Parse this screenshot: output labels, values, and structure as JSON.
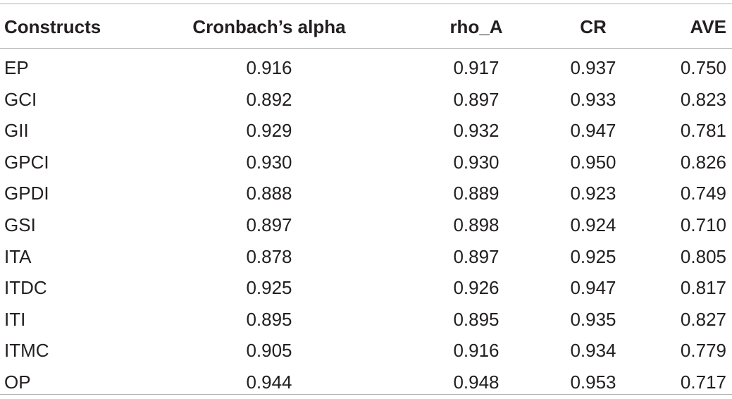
{
  "table": {
    "headers": [
      "Constructs",
      "Cronbach’s alpha",
      "rho_A",
      "CR",
      "AVE"
    ],
    "rows": [
      [
        "EP",
        "0.916",
        "0.917",
        "0.937",
        "0.750"
      ],
      [
        "GCI",
        "0.892",
        "0.897",
        "0.933",
        "0.823"
      ],
      [
        "GII",
        "0.929",
        "0.932",
        "0.947",
        "0.781"
      ],
      [
        "GPCI",
        "0.930",
        "0.930",
        "0.950",
        "0.826"
      ],
      [
        "GPDI",
        "0.888",
        "0.889",
        "0.923",
        "0.749"
      ],
      [
        "GSI",
        "0.897",
        "0.898",
        "0.924",
        "0.710"
      ],
      [
        "ITA",
        "0.878",
        "0.897",
        "0.925",
        "0.805"
      ],
      [
        "ITDC",
        "0.925",
        "0.926",
        "0.947",
        "0.817"
      ],
      [
        "ITI",
        "0.895",
        "0.895",
        "0.935",
        "0.827"
      ],
      [
        "ITMC",
        "0.905",
        "0.916",
        "0.934",
        "0.779"
      ],
      [
        "OP",
        "0.944",
        "0.948",
        "0.953",
        "0.717"
      ]
    ]
  }
}
